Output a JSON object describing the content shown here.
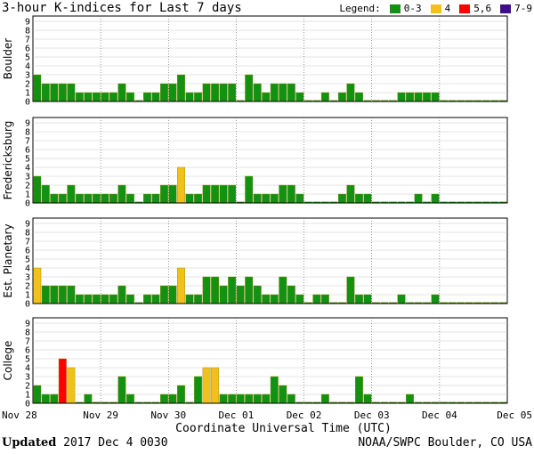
{
  "title": "3-hour K-indices for Last 7 days",
  "legend": {
    "label": "Legend:",
    "items": [
      {
        "label": "0-3",
        "color": "#139113"
      },
      {
        "label": "4",
        "color": "#f2c01a"
      },
      {
        "label": "5,6",
        "color": "#ff0000"
      },
      {
        "label": "7-9",
        "color": "#3d0f8a"
      }
    ]
  },
  "footer": {
    "updated_label": "Updated",
    "updated_value": "2017 Dec  4 0030",
    "credit": "NOAA/SWPC Boulder, CO USA"
  },
  "chart_data": {
    "type": "bar",
    "xlabel": "Coordinate Universal Time (UTC)",
    "x_ticks": [
      "Nov 28",
      "Nov 29",
      "Nov 30",
      "Dec 01",
      "Dec 02",
      "Dec 03",
      "Dec 04",
      "Dec 05"
    ],
    "ylim": [
      0,
      9
    ],
    "y_ticks": [
      "0",
      "1",
      "2",
      "3",
      "4",
      "5",
      "6",
      "7",
      "8",
      "9"
    ],
    "bins_per_day": 8,
    "n_bins": 56,
    "grid": true,
    "panels": [
      {
        "name": "Boulder",
        "values": [
          3,
          2,
          2,
          2,
          2,
          1,
          1,
          1,
          1,
          1,
          2,
          1,
          0,
          1,
          1,
          2,
          2,
          3,
          1,
          1,
          2,
          2,
          2,
          2,
          0,
          3,
          2,
          1,
          2,
          2,
          2,
          1,
          0,
          0,
          1,
          0,
          1,
          2,
          1,
          0,
          0,
          0,
          0,
          1,
          1,
          1,
          1,
          1,
          0,
          0,
          0,
          0,
          0,
          0,
          0,
          0
        ]
      },
      {
        "name": "Fredericksburg",
        "values": [
          3,
          2,
          1,
          1,
          2,
          1,
          1,
          1,
          1,
          1,
          2,
          1,
          0,
          1,
          1,
          2,
          2,
          4,
          1,
          1,
          2,
          2,
          2,
          2,
          0,
          3,
          1,
          1,
          1,
          2,
          2,
          1,
          0,
          0,
          0,
          0,
          1,
          2,
          1,
          1,
          0,
          0,
          0,
          0,
          0,
          1,
          0,
          1,
          0,
          0,
          0,
          0,
          0,
          0,
          0,
          0
        ]
      },
      {
        "name": "Est. Planetary",
        "values": [
          4,
          2,
          2,
          2,
          2,
          1,
          1,
          1,
          1,
          1,
          2,
          1,
          0,
          1,
          1,
          2,
          2,
          4,
          1,
          1,
          3,
          3,
          2,
          3,
          2,
          3,
          2,
          1,
          1,
          3,
          2,
          1,
          0,
          1,
          1,
          0,
          0,
          3,
          1,
          1,
          0,
          0,
          0,
          1,
          0,
          0,
          0,
          1,
          0,
          0,
          0,
          0,
          0,
          0,
          0,
          0
        ]
      },
      {
        "name": "College",
        "values": [
          2,
          1,
          1,
          5,
          4,
          0,
          1,
          0,
          0,
          0,
          3,
          1,
          0,
          0,
          0,
          1,
          1,
          2,
          0,
          3,
          4,
          4,
          1,
          1,
          1,
          1,
          1,
          1,
          3,
          2,
          1,
          0,
          0,
          0,
          1,
          0,
          0,
          0,
          3,
          1,
          0,
          0,
          0,
          0,
          1,
          0,
          0,
          0,
          0,
          0,
          0,
          0,
          0,
          0,
          0,
          0
        ]
      }
    ]
  }
}
